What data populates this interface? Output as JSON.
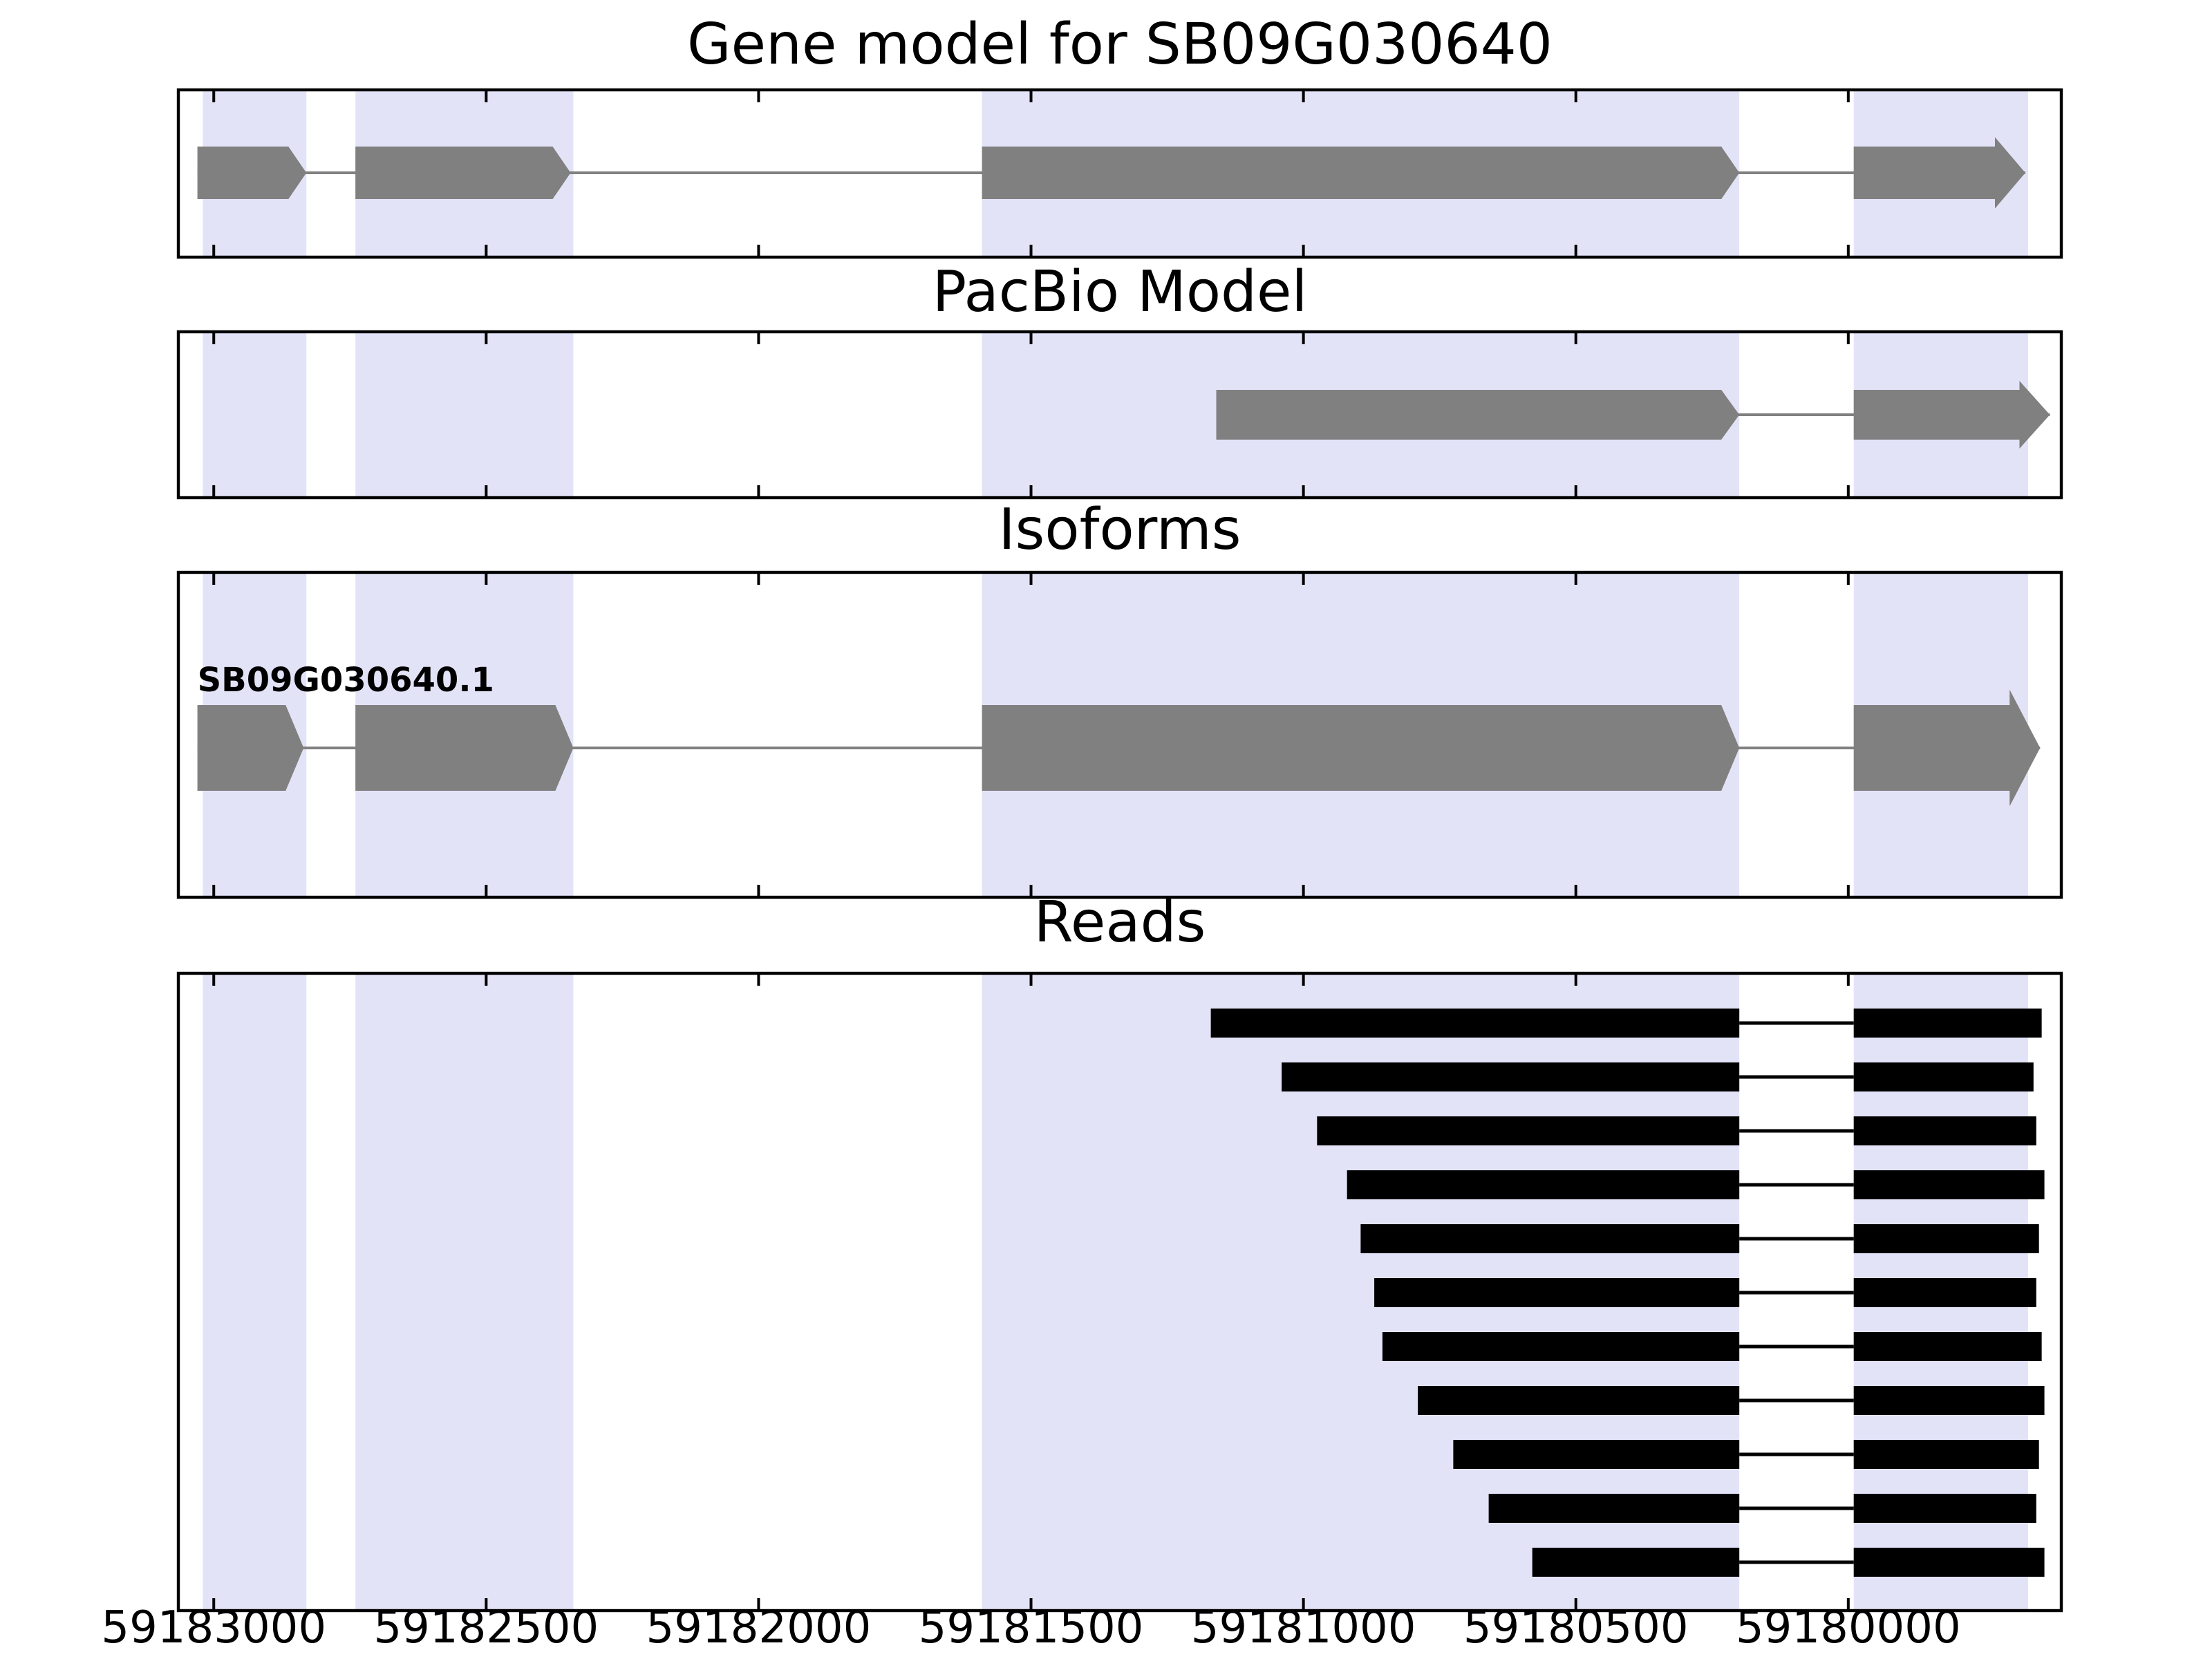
{
  "colors": {
    "background": "#ffffff",
    "highlight_band": "#e3e3f8",
    "exon_fill": "#808080",
    "read_fill": "#000000",
    "connector": "#808080",
    "read_connector": "#000000",
    "border": "#000000",
    "text": "#000000"
  },
  "chart_data": {
    "type": "genome-browser-tracks",
    "x_axis": {
      "view_start": 59183065,
      "view_end": 59179609,
      "inverted": true,
      "tick_positions": [
        59183000,
        59182500,
        59182000,
        59181500,
        59181000,
        59180500,
        59180000
      ],
      "label_values": [
        "59183000",
        "59182500",
        "59182000",
        "59181500",
        "59181000",
        "59180500",
        "59180000"
      ]
    },
    "highlight_regions": [
      {
        "from": 59183020,
        "to": 59182830
      },
      {
        "from": 59182740,
        "to": 59182340
      },
      {
        "from": 59181590,
        "to": 59180200
      },
      {
        "from": 59179990,
        "to": 59179670
      }
    ],
    "tracks": [
      {
        "id": "gene-model",
        "title": "Gene model for SB09G030640",
        "models": [
          {
            "label": "",
            "exons": [
              [
                59183030,
                59182830
              ],
              [
                59182740,
                59182345
              ],
              [
                59181590,
                59180200
              ],
              [
                59179990,
                59179675
              ]
            ]
          }
        ]
      },
      {
        "id": "pacbio-model",
        "title": "PacBio Model",
        "models": [
          {
            "label": "",
            "exons": [
              [
                59181160,
                59180200
              ],
              [
                59179990,
                59179630
              ]
            ]
          }
        ]
      },
      {
        "id": "isoforms",
        "title": "Isoforms",
        "models": [
          {
            "label": "SB09G030640.1",
            "exons": [
              [
                59183030,
                59182835
              ],
              [
                59182740,
                59182340
              ],
              [
                59181590,
                59180200
              ],
              [
                59179990,
                59179648
              ]
            ]
          }
        ]
      },
      {
        "id": "reads",
        "title": "Reads",
        "reads": [
          {
            "exons": [
              [
                59181170,
                59180200
              ],
              [
                59179990,
                59179645
              ]
            ]
          },
          {
            "exons": [
              [
                59181040,
                59180200
              ],
              [
                59179990,
                59179660
              ]
            ]
          },
          {
            "exons": [
              [
                59180975,
                59180200
              ],
              [
                59179990,
                59179655
              ]
            ]
          },
          {
            "exons": [
              [
                59180920,
                59180200
              ],
              [
                59179990,
                59179640
              ]
            ]
          },
          {
            "exons": [
              [
                59180895,
                59180200
              ],
              [
                59179990,
                59179650
              ]
            ]
          },
          {
            "exons": [
              [
                59180870,
                59180200
              ],
              [
                59179990,
                59179655
              ]
            ]
          },
          {
            "exons": [
              [
                59180855,
                59180200
              ],
              [
                59179990,
                59179645
              ]
            ]
          },
          {
            "exons": [
              [
                59180790,
                59180200
              ],
              [
                59179990,
                59179640
              ]
            ]
          },
          {
            "exons": [
              [
                59180725,
                59180200
              ],
              [
                59179990,
                59179650
              ]
            ]
          },
          {
            "exons": [
              [
                59180660,
                59180200
              ],
              [
                59179990,
                59179655
              ]
            ]
          },
          {
            "exons": [
              [
                59180580,
                59180200
              ],
              [
                59179990,
                59179640
              ]
            ]
          }
        ]
      }
    ]
  }
}
